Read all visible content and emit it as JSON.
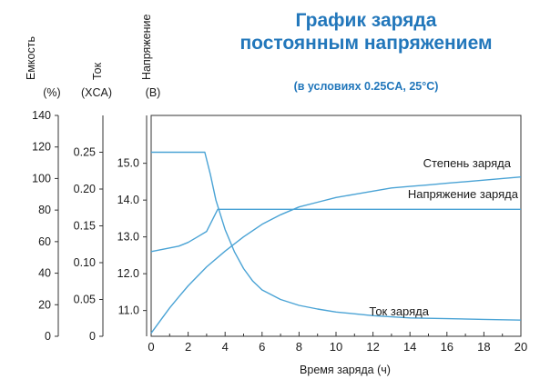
{
  "chart_data": {
    "type": "line",
    "title": [
      "График заряда",
      "постоянным напряжением"
    ],
    "subtitle": "(в условиях 0.25CA, 25°C)",
    "xlabel": "Время заряда (ч)",
    "xlim": [
      0,
      20
    ],
    "x_ticks": [
      "0",
      "2",
      "4",
      "6",
      "8",
      "10",
      "12",
      "14",
      "16",
      "18",
      "20"
    ],
    "grid": false,
    "axes": [
      {
        "name": "capacity",
        "label": "Емкость",
        "unit": "(%)",
        "lim": [
          0,
          140
        ],
        "ticks": [
          "0",
          "20",
          "40",
          "60",
          "80",
          "100",
          "120",
          "140"
        ]
      },
      {
        "name": "current",
        "label": "Ток",
        "unit": "(XCA)",
        "lim": [
          0,
          0.3
        ],
        "ticks": [
          "0",
          "0.05",
          "0.10",
          "0.15",
          "0.20",
          "0.25"
        ]
      },
      {
        "name": "voltage",
        "label": "Напряжение",
        "unit": "(В)",
        "lim": [
          10.3,
          16.3
        ],
        "ticks": [
          "11.0",
          "12.0",
          "13.0",
          "14.0",
          "15.0"
        ]
      }
    ],
    "series": [
      {
        "name": "Степень заряда",
        "axis": "capacity",
        "color": "#4aa3d5",
        "x": [
          0,
          0.5,
          1,
          1.5,
          2,
          3,
          4,
          5,
          6,
          7,
          8,
          9,
          10,
          11,
          12,
          13,
          14,
          15,
          16,
          17,
          18,
          19,
          20
        ],
        "y": [
          2,
          10,
          18,
          25,
          32,
          44,
          54,
          63,
          71,
          77,
          82,
          85,
          88,
          90,
          92,
          94,
          95,
          96,
          97,
          98,
          99,
          100,
          101
        ]
      },
      {
        "name": "Напряжение заряда",
        "axis": "voltage",
        "color": "#4aa3d5",
        "x": [
          0,
          1,
          1.5,
          2,
          2.5,
          3,
          3.3,
          3.6,
          4,
          6,
          8,
          10,
          12,
          14,
          16,
          18,
          20
        ],
        "y": [
          12.6,
          12.7,
          12.75,
          12.85,
          13.0,
          13.15,
          13.45,
          13.75,
          13.75,
          13.75,
          13.75,
          13.75,
          13.75,
          13.75,
          13.75,
          13.75,
          13.75
        ]
      },
      {
        "name": "Ток заряда",
        "axis": "current",
        "color": "#4aa3d5",
        "x": [
          0,
          1,
          2,
          2.9,
          3.2,
          3.5,
          4,
          4.5,
          5,
          5.5,
          6,
          7,
          8,
          9,
          10,
          12,
          14,
          16,
          18,
          20
        ],
        "y": [
          0.25,
          0.25,
          0.25,
          0.25,
          0.22,
          0.185,
          0.145,
          0.115,
          0.092,
          0.075,
          0.063,
          0.05,
          0.042,
          0.037,
          0.033,
          0.028,
          0.025,
          0.024,
          0.023,
          0.022
        ]
      }
    ]
  }
}
